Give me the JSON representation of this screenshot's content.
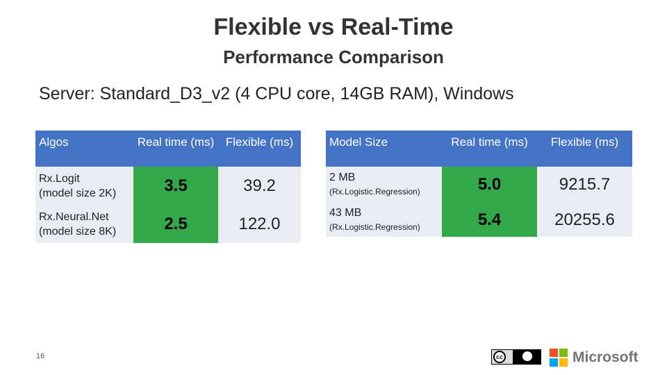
{
  "slide": {
    "title": "Flexible vs Real-Time",
    "subtitle": "Performance Comparison",
    "server": "Server: Standard_D3_v2 (4 CPU core, 14GB RAM), Windows",
    "page_number": "16",
    "brand": "Microsoft"
  },
  "colors": {
    "header": "#4472c4",
    "cell": "#e9ecf2",
    "highlight": "#33a849"
  },
  "table1": {
    "headers": [
      "Algos",
      "Real time (ms)",
      "Flexible (ms)"
    ],
    "rows": [
      {
        "algo_line1": "Rx.Logit",
        "algo_line2": "(model size 2K)",
        "realtime": "3.5",
        "flexible": "39.2"
      },
      {
        "algo_line1": "Rx.Neural.Net",
        "algo_line2": "(model size 8K)",
        "realtime": "2.5",
        "flexible": "122.0"
      }
    ]
  },
  "table2": {
    "headers": [
      "Model Size",
      "Real time (ms)",
      "Flexible (ms)"
    ],
    "rows": [
      {
        "size": "2 MB",
        "model": "(Rx.Logistic.Regression)",
        "realtime": "5.0",
        "flexible": "9215.7"
      },
      {
        "size": "43 MB",
        "model": "(Rx.Logistic.Regression)",
        "realtime": "5.4",
        "flexible": "20255.6"
      }
    ]
  },
  "icons": {
    "license": "creative-commons-by-icon",
    "logo": "microsoft-logo-icon"
  }
}
